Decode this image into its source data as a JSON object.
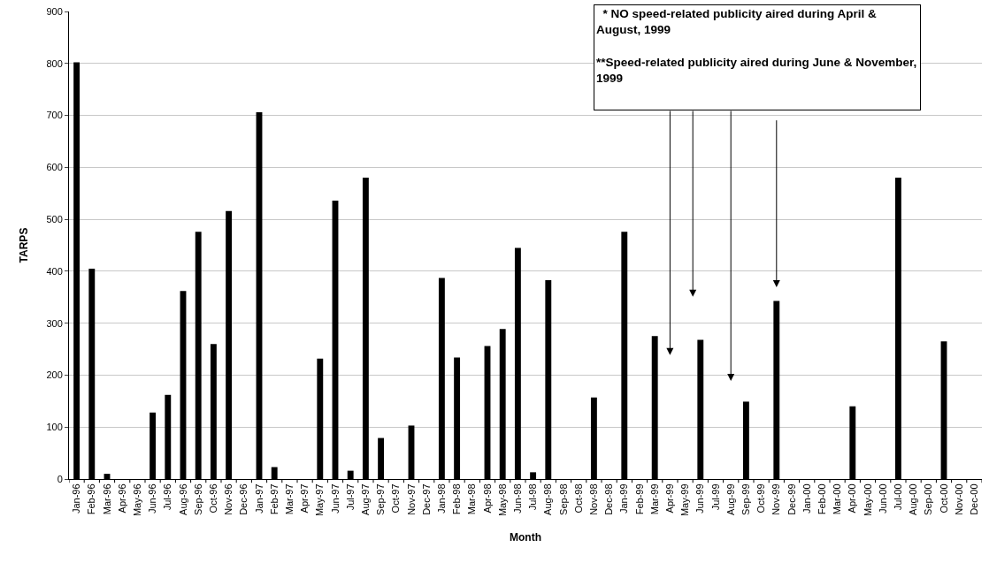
{
  "chart_data": {
    "type": "bar",
    "xlabel": "Month",
    "ylabel": "TARPS",
    "categories": [
      "Jan-96",
      "Feb-96",
      "Mar-96",
      "Apr-96",
      "May-96",
      "Jun-96",
      "Jul-96",
      "Aug-96",
      "Sep-96",
      "Oct-96",
      "Nov-96",
      "Dec-96",
      "Jan-97",
      "Feb-97",
      "Mar-97",
      "Apr-97",
      "May-97",
      "Jun-97",
      "Jul-97",
      "Aug-97",
      "Sep-97",
      "Oct-97",
      "Nov-97",
      "Dec-97",
      "Jan-98",
      "Feb-98",
      "Mar-98",
      "Apr-98",
      "May-98",
      "Jun-98",
      "Jul-98",
      "Aug-98",
      "Sep-98",
      "Oct-98",
      "Nov-98",
      "Dec-98",
      "Jan-99",
      "Feb-99",
      "Mar-99",
      "Apr-99",
      "May-99",
      "Jun-99",
      "Jul-99",
      "Aug-99",
      "Sep-99",
      "Oct-99",
      "Nov-99",
      "Dec-99",
      "Jan-00",
      "Feb-00",
      "Mar-00",
      "Apr-00",
      "May-00",
      "Jun-00",
      "Jul-00",
      "Aug-00",
      "Sep-00",
      "Oct-00",
      "Nov-00",
      "Dec-00"
    ],
    "values": [
      802,
      405,
      10,
      0,
      0,
      128,
      162,
      362,
      476,
      260,
      516,
      0,
      706,
      23,
      0,
      0,
      232,
      536,
      16,
      580,
      79,
      0,
      103,
      0,
      387,
      234,
      0,
      256,
      289,
      445,
      13,
      383,
      0,
      0,
      157,
      0,
      476,
      0,
      275,
      0,
      0,
      268,
      0,
      0,
      149,
      0,
      343,
      0,
      0,
      0,
      0,
      140,
      0,
      0,
      580,
      0,
      0,
      265,
      0,
      0
    ],
    "color": "#000000",
    "ylim": [
      0,
      900
    ],
    "yticks": [
      0,
      100,
      200,
      300,
      400,
      500,
      600,
      700,
      800,
      900
    ],
    "grid": "y",
    "annotations": [
      "  * NO speed-related publicity aired during April & August, 1999",
      "**Speed-related publicity aired during June & November, 1999"
    ]
  }
}
